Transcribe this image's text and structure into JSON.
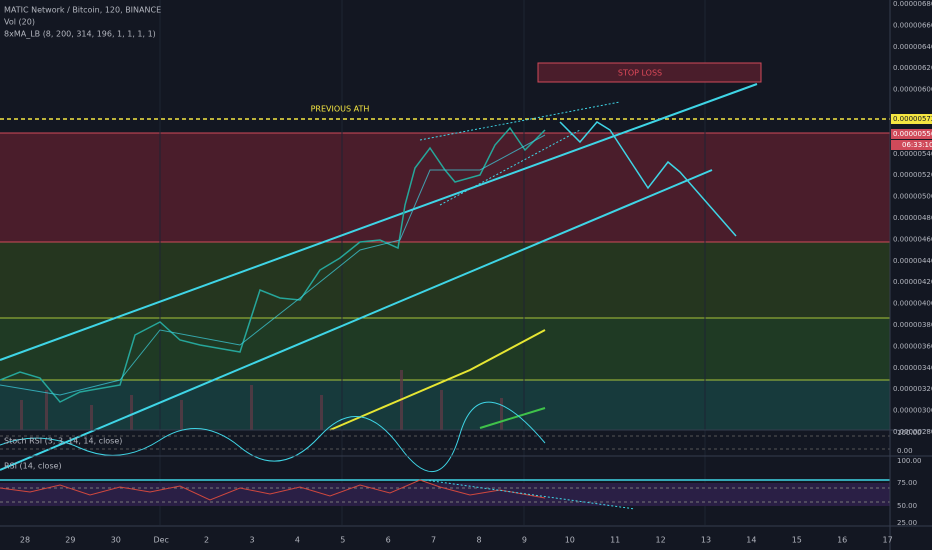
{
  "header": {
    "symbol": "MATIC Network / Bitcoin, 120, BINANCE",
    "indicators": [
      "Vol (20)",
      "8xMA_LB (8, 200, 314, 196, 1, 1, 1, 1)"
    ]
  },
  "annotations": {
    "stop_loss": "STOP LOSS",
    "previous_ath": "PREVIOUS ATH"
  },
  "price_axis": {
    "labels": [
      "0.00000680",
      "0.00000660",
      "0.00000640",
      "0.00000620",
      "0.00000600",
      "0.00000580",
      "0.00000560",
      "0.00000540",
      "0.00000520",
      "0.00000500",
      "0.00000480",
      "0.00000460",
      "0.00000440",
      "0.00000420",
      "0.00000400",
      "0.00000380",
      "0.00000360",
      "0.00000340",
      "0.00000320",
      "0.00000300",
      "0.00000280"
    ],
    "marker": "0.00000572",
    "last_price": "0.00000556",
    "countdown": "06:33:10"
  },
  "stoch": {
    "title": "Stoch RSI (3, 3, 14, 14, close)",
    "axis": [
      "100.00",
      "0.00"
    ]
  },
  "rsi": {
    "title": "RSI (14, close)",
    "axis": [
      "100.00",
      "75.00",
      "50.00",
      "25.00"
    ]
  },
  "time_axis": {
    "labels": [
      "28",
      "29",
      "30",
      "Dec",
      "2",
      "3",
      "4",
      "5",
      "6",
      "7",
      "8",
      "9",
      "10",
      "11",
      "12",
      "13",
      "14",
      "15",
      "16",
      "17"
    ]
  }
}
